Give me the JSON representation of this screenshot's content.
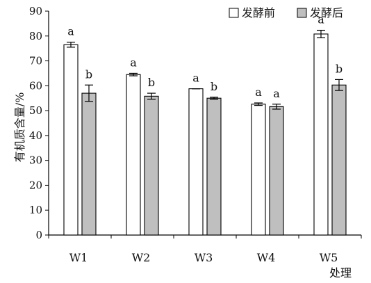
{
  "chart_data": {
    "type": "bar",
    "title": "",
    "xlabel": "处理",
    "ylabel": "有机质含量/%",
    "ylim": [
      0,
      90
    ],
    "yticks": [
      0,
      10,
      20,
      30,
      40,
      50,
      60,
      70,
      80,
      90
    ],
    "grid": false,
    "legend_position": "top-right",
    "categories": [
      "W1",
      "W2",
      "W3",
      "W4",
      "W5"
    ],
    "series": [
      {
        "name": "发酵前",
        "color": "#ffffff",
        "values": [
          76.5,
          64.5,
          58.8,
          52.6,
          80.8
        ],
        "errors": [
          1.0,
          0.5,
          0.0,
          0.5,
          1.5
        ],
        "labels": [
          "a",
          "a",
          "a",
          "a",
          "a"
        ]
      },
      {
        "name": "发酵后",
        "color": "#bfbfbf",
        "values": [
          57.0,
          55.8,
          55.0,
          51.6,
          60.3
        ],
        "errors": [
          3.3,
          1.2,
          0.4,
          1.0,
          2.2
        ],
        "labels": [
          "b",
          "b",
          "b",
          "a",
          "b"
        ]
      }
    ]
  }
}
